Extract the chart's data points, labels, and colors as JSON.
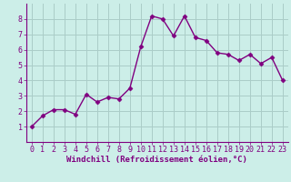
{
  "x": [
    0,
    1,
    2,
    3,
    4,
    5,
    6,
    7,
    8,
    9,
    10,
    11,
    12,
    13,
    14,
    15,
    16,
    17,
    18,
    19,
    20,
    21,
    22,
    23
  ],
  "y": [
    1.0,
    1.7,
    2.1,
    2.1,
    1.8,
    3.1,
    2.6,
    2.9,
    2.8,
    3.5,
    6.2,
    8.2,
    8.0,
    6.9,
    8.2,
    6.8,
    6.6,
    5.8,
    5.7,
    5.3,
    5.7,
    5.1,
    5.5,
    4.0
  ],
  "line_color": "#800080",
  "marker": "D",
  "marker_size": 2.5,
  "bg_color": "#cceee8",
  "grid_color": "#aaccc8",
  "xlabel": "Windchill (Refroidissement éolien,°C)",
  "xlim": [
    -0.5,
    23.5
  ],
  "ylim": [
    0,
    9
  ],
  "yticks": [
    1,
    2,
    3,
    4,
    5,
    6,
    7,
    8
  ],
  "xticks": [
    0,
    1,
    2,
    3,
    4,
    5,
    6,
    7,
    8,
    9,
    10,
    11,
    12,
    13,
    14,
    15,
    16,
    17,
    18,
    19,
    20,
    21,
    22,
    23
  ],
  "xlabel_fontsize": 6.5,
  "tick_fontsize": 6.0,
  "axis_color": "#800080",
  "line_width": 1.0
}
